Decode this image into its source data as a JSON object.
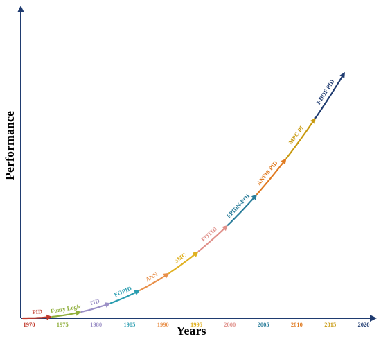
{
  "chart_data": {
    "type": "line",
    "title": "",
    "xlabel": "Years",
    "ylabel": "Performance",
    "x_ticks": [
      {
        "label": "1970",
        "value": 1970,
        "color": "#c0392b"
      },
      {
        "label": "1975",
        "value": 1975,
        "color": "#8fae3b"
      },
      {
        "label": "1980",
        "value": 1980,
        "color": "#9b8fc6"
      },
      {
        "label": "1985",
        "value": 1985,
        "color": "#2a9db0"
      },
      {
        "label": "1990",
        "value": 1990,
        "color": "#e8904a"
      },
      {
        "label": "1995",
        "value": 1995,
        "color": "#e0b020"
      },
      {
        "label": "2000",
        "value": 2000,
        "color": "#e0908a"
      },
      {
        "label": "2005",
        "value": 2005,
        "color": "#2a7d9a"
      },
      {
        "label": "2010",
        "value": 2010,
        "color": "#e07a20"
      },
      {
        "label": "2015",
        "value": 2015,
        "color": "#c89a10"
      },
      {
        "label": "2020",
        "value": 2020,
        "color": "#1f3b70"
      }
    ],
    "segments": [
      {
        "label": "PID",
        "color": "#c0392b"
      },
      {
        "label": "Fuzzy Logic",
        "color": "#8fae3b"
      },
      {
        "label": "TID",
        "color": "#9b8fc6"
      },
      {
        "label": "FOPID",
        "color": "#2a9db0"
      },
      {
        "label": "ANN",
        "color": "#e8904a"
      },
      {
        "label": "SMC",
        "color": "#e0b020"
      },
      {
        "label": "FOTID",
        "color": "#e0908a"
      },
      {
        "label": "FPIDN-FOI",
        "color": "#2a7d9a"
      },
      {
        "label": "ANFIS PID",
        "color": "#e07a20"
      },
      {
        "label": "MPC PI",
        "color": "#c89a10"
      },
      {
        "label": "2-DOF PID",
        "color": "#1f3b70"
      }
    ],
    "axis_color": "#1f3b70",
    "grid": false,
    "legend": "none"
  }
}
